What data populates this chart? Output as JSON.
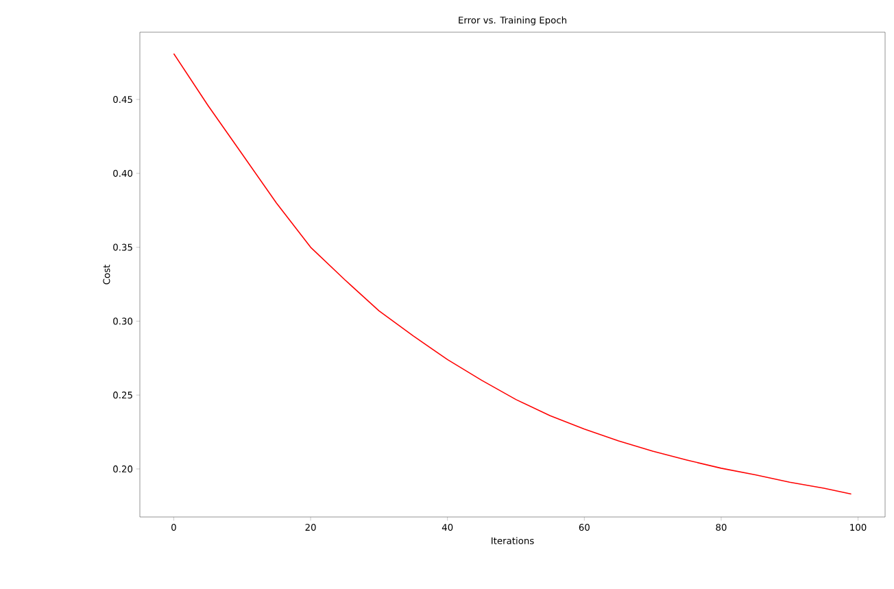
{
  "chart_data": {
    "type": "line",
    "title": "Error vs. Training Epoch",
    "xlabel": "Iterations",
    "ylabel": "Cost",
    "x": [
      0,
      5,
      10,
      15,
      20,
      25,
      30,
      35,
      40,
      45,
      50,
      55,
      60,
      65,
      70,
      75,
      80,
      85,
      90,
      95,
      99
    ],
    "values": [
      0.481,
      0.446,
      0.413,
      0.38,
      0.35,
      0.328,
      0.307,
      0.29,
      0.274,
      0.26,
      0.247,
      0.236,
      0.227,
      0.219,
      0.212,
      0.206,
      0.2005,
      0.196,
      0.191,
      0.187,
      0.183
    ],
    "color": "#ff0000",
    "xlim": [
      -4.95,
      103.95
    ],
    "ylim": [
      0.1675,
      0.4955
    ],
    "xticks": [
      0,
      20,
      40,
      60,
      80,
      100
    ],
    "yticks": [
      {
        "value": 0.2,
        "label": "0.20"
      },
      {
        "value": 0.25,
        "label": "0.25"
      },
      {
        "value": 0.3,
        "label": "0.30"
      },
      {
        "value": 0.35,
        "label": "0.35"
      },
      {
        "value": 0.4,
        "label": "0.40"
      },
      {
        "value": 0.45,
        "label": "0.45"
      }
    ]
  }
}
